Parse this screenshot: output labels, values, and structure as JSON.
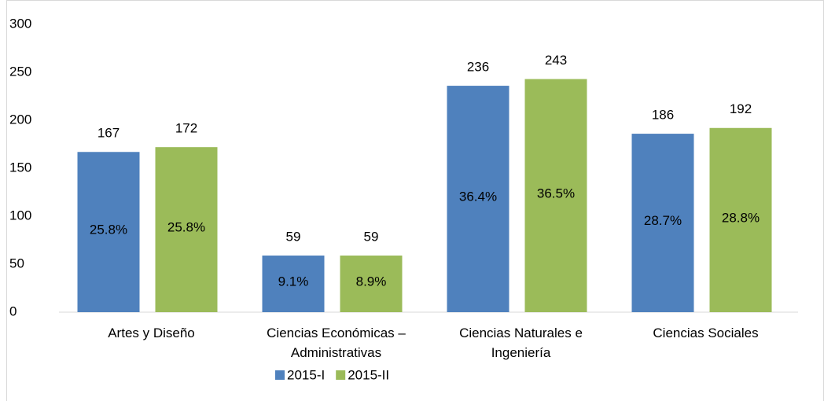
{
  "chart_data": {
    "type": "bar",
    "categories": [
      "Artes y Diseño",
      "Ciencias Económicas – Administrativas",
      "Ciencias Naturales e Ingeniería",
      "Ciencias Sociales"
    ],
    "series": [
      {
        "name": "2015-I",
        "color": "#4f81bd",
        "values": [
          167,
          59,
          236,
          186
        ],
        "percent_labels": [
          "25.8%",
          "9.1%",
          "36.4%",
          "28.7%"
        ]
      },
      {
        "name": "2015-II",
        "color": "#9bbb59",
        "values": [
          172,
          59,
          243,
          192
        ],
        "percent_labels": [
          "25.8%",
          "8.9%",
          "36.5%",
          "28.8%"
        ]
      }
    ],
    "ylim": [
      0,
      300
    ],
    "yticks": [
      0,
      50,
      100,
      150,
      200,
      250,
      300
    ],
    "grid": false,
    "legend": "bottom"
  }
}
